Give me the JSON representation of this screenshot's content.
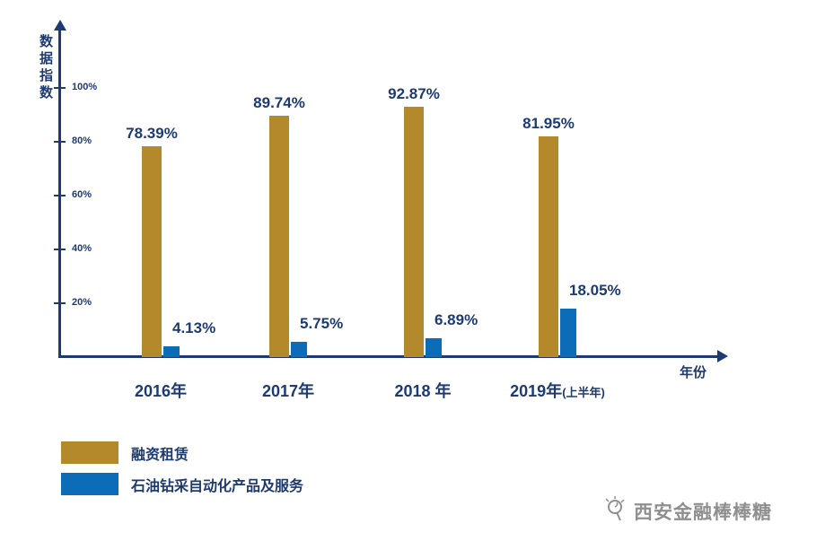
{
  "chart_data": {
    "type": "bar",
    "categories": [
      "2016年",
      "2017年",
      "2018 年",
      "2019年(上半年)"
    ],
    "x_display": [
      {
        "main": "2016年",
        "suffix": ""
      },
      {
        "main": "2017年",
        "suffix": ""
      },
      {
        "main": "2018 年",
        "suffix": ""
      },
      {
        "main": "2019年",
        "suffix": "(上半年)"
      }
    ],
    "series": [
      {
        "name": "融资租赁",
        "color": "#b3892b",
        "values": [
          78.39,
          89.74,
          92.87,
          81.95
        ],
        "labels": [
          "78.39%",
          "89.74%",
          "92.87%",
          "81.95%"
        ]
      },
      {
        "name": "石油钻采自动化产品及服务",
        "color": "#0d6cb8",
        "values": [
          4.13,
          5.75,
          6.89,
          18.05
        ],
        "labels": [
          "4.13%",
          "5.75%",
          "6.89%",
          "18.05%"
        ]
      }
    ],
    "title": "",
    "ylabel": "数据指数",
    "xlabel": "年份",
    "yticks": [
      {
        "label": "20%",
        "value": 20
      },
      {
        "label": "40%",
        "value": 40
      },
      {
        "label": "60%",
        "value": 60
      },
      {
        "label": "80%",
        "value": 80
      },
      {
        "label": "100%",
        "value": 100
      }
    ],
    "ylim": [
      0,
      100
    ],
    "grid": false,
    "legend_position": "bottom-left"
  },
  "legend": {
    "items": [
      {
        "label": "融资租赁",
        "color": "#b3892b"
      },
      {
        "label": "石油钻采自动化产品及服务",
        "color": "#0d6cb8"
      }
    ]
  },
  "watermark": {
    "text": "西安金融棒棒糖"
  },
  "colors": {
    "axis": "#1d3a72",
    "text": "#1d3a72",
    "gold": "#b3892b",
    "blue": "#0d6cb8",
    "watermark": "#8f8f8f"
  }
}
